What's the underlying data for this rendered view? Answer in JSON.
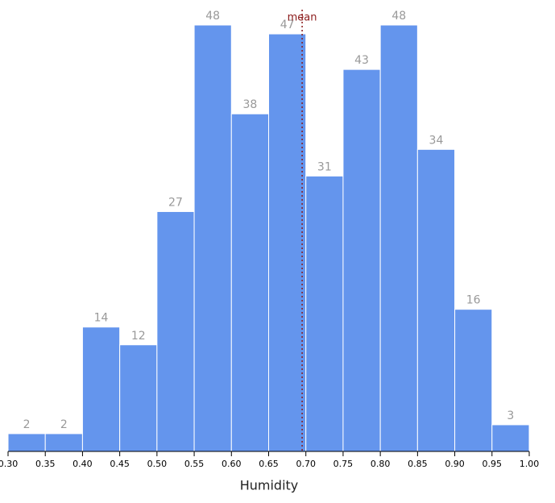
{
  "chart_data": {
    "type": "histogram",
    "x_label": "Humidity",
    "bins": [
      0.3,
      0.35,
      0.4,
      0.45,
      0.5,
      0.55,
      0.6,
      0.65,
      0.7,
      0.75,
      0.8,
      0.85,
      0.9,
      0.95,
      1.0
    ],
    "values": [
      2,
      2,
      14,
      12,
      27,
      48,
      38,
      47,
      31,
      43,
      48,
      34,
      16,
      3
    ],
    "color": "#6495ed",
    "xlim": [
      0.3,
      1.0
    ],
    "xticks": [
      {
        "value": 0.3,
        "label": "0.30"
      },
      {
        "value": 0.35,
        "label": "0.35"
      },
      {
        "value": 0.4,
        "label": "0.40"
      },
      {
        "value": 0.45,
        "label": "0.45"
      },
      {
        "value": 0.5,
        "label": "0.50"
      },
      {
        "value": 0.55,
        "label": "0.55"
      },
      {
        "value": 0.6,
        "label": "0.60"
      },
      {
        "value": 0.65,
        "label": "0.65"
      },
      {
        "value": 0.7,
        "label": "0.70"
      },
      {
        "value": 0.75,
        "label": "0.75"
      },
      {
        "value": 0.8,
        "label": "0.80"
      },
      {
        "value": 0.85,
        "label": "0.85"
      },
      {
        "value": 0.9,
        "label": "0.90"
      },
      {
        "value": 0.95,
        "label": "0.95"
      },
      {
        "value": 1.0,
        "label": "1.00"
      }
    ],
    "mean": {
      "value": 0.695,
      "label": "mean",
      "color": "#8b1a1a"
    }
  }
}
